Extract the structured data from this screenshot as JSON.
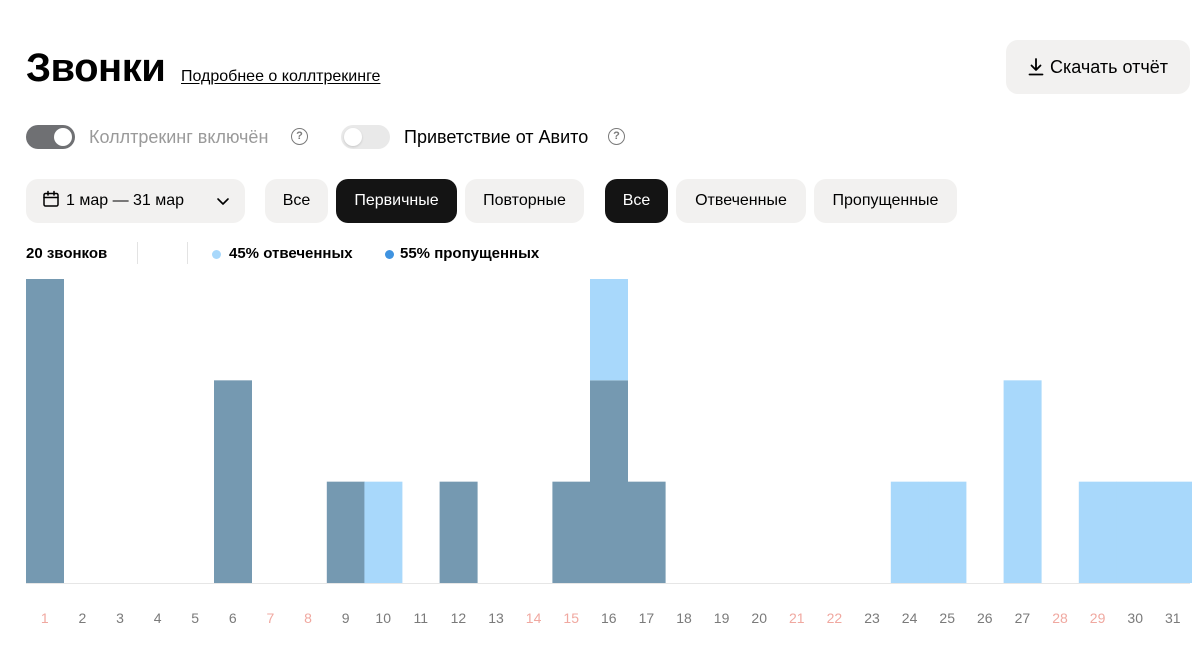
{
  "header": {
    "title": "Звонки",
    "calltracking_link": "Подробнее о коллтрекинге",
    "download_label": "Скачать отчёт"
  },
  "toggles": {
    "calltracking": {
      "label": "Коллтрекинг включён",
      "on": true
    },
    "greeting": {
      "label": "Приветствие от Авито",
      "on": false
    }
  },
  "filters": {
    "date_range": "1 мар — 31 мар",
    "call_type": [
      "Все",
      "Первичные",
      "Повторные"
    ],
    "call_type_selected": "Первичные",
    "call_status": [
      "Все",
      "Отвеченные",
      "Пропущенные"
    ],
    "call_status_selected": "Все"
  },
  "summary": {
    "total": "20 звонков",
    "answered": "45% отвеченных",
    "missed": "55% пропущенных"
  },
  "colors": {
    "answered": "#a8d8fb",
    "missed": "#7599b1",
    "missed_legend": "#3f93e0",
    "weekend_label": "#f0a8a0",
    "weekday_label": "#7a7a7a"
  },
  "chart_data": {
    "type": "bar",
    "stacked": true,
    "categories": [
      "1",
      "2",
      "3",
      "4",
      "5",
      "6",
      "7",
      "8",
      "9",
      "10",
      "11",
      "12",
      "13",
      "14",
      "15",
      "16",
      "17",
      "18",
      "19",
      "20",
      "21",
      "22",
      "23",
      "24",
      "25",
      "26",
      "27",
      "28",
      "29",
      "30",
      "31"
    ],
    "weekend_days": [
      "1",
      "7",
      "8",
      "14",
      "15",
      "21",
      "22",
      "28",
      "29"
    ],
    "series": [
      {
        "key": "missed",
        "values": [
          3,
          0,
          0,
          0,
          0,
          2,
          0,
          0,
          1,
          0,
          0,
          1,
          0,
          0,
          1,
          2,
          1,
          0,
          0,
          0,
          0,
          0,
          0,
          0,
          0,
          0,
          0,
          0,
          0,
          0,
          0
        ]
      },
      {
        "key": "answered",
        "values": [
          0,
          0,
          0,
          0,
          0,
          0,
          0,
          0,
          0,
          1,
          0,
          0,
          0,
          0,
          0,
          1,
          0,
          0,
          0,
          0,
          0,
          0,
          0,
          1,
          1,
          0,
          2,
          0,
          1,
          1,
          1
        ]
      }
    ],
    "ylim": [
      0,
      3
    ],
    "grid": false
  }
}
